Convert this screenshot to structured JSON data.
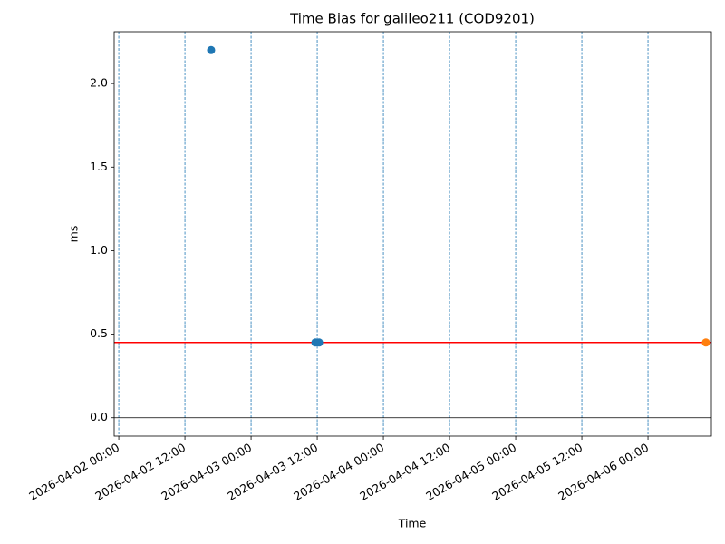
{
  "chart_data": {
    "type": "scatter",
    "title": "Time Bias for galileo211 (COD9201)",
    "x_label": "Time",
    "y_label": "ms",
    "series": [
      {
        "color": "#1f77b4",
        "x": [
          "2026-04-02 16:45",
          "2026-04-03 11:40",
          "2026-04-03 12:20"
        ],
        "values": [
          2.2,
          0.45,
          0.45
        ]
      },
      {
        "color": "#ff7f0e",
        "x": [
          "2026-04-06 10:30"
        ],
        "values": [
          0.45
        ]
      }
    ],
    "hlines": [
      {
        "value": 0.45,
        "color": "#ff0000"
      },
      {
        "value": 0,
        "color": "#000000"
      }
    ],
    "xlim": [
      "2026-04-01 23:10",
      "2026-04-06 11:30"
    ],
    "xticks": [
      "2026-04-02 00:00",
      "2026-04-02 12:00",
      "2026-04-03 00:00",
      "2026-04-03 12:00",
      "2026-04-04 00:00",
      "2026-04-04 12:00",
      "2026-04-05 00:00",
      "2026-04-05 12:00",
      "2026-04-06 00:00"
    ],
    "vertical_grid_days": true,
    "ylim": [
      -0.11,
      2.31
    ],
    "yticks": [
      {
        "value": 0,
        "label": "0.0"
      },
      0.5,
      {
        "value": 1,
        "label": "1.0"
      },
      1.5,
      {
        "value": 2,
        "label": "2.0"
      }
    ]
  }
}
